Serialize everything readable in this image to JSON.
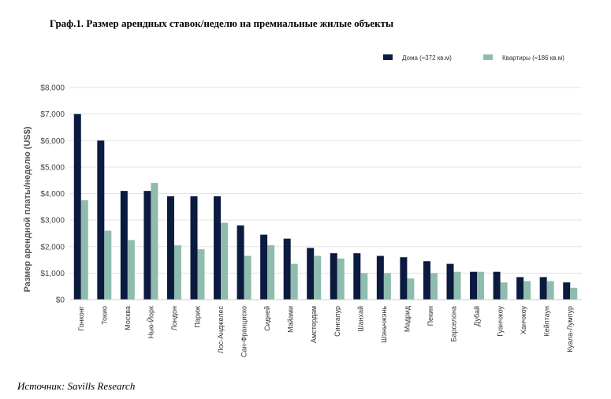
{
  "chart_data": {
    "type": "bar",
    "title": "Граф.1. Размер арендных ставок/неделю на премиальные жилые объекты",
    "ylabel": "Размер арендной платы/неделю (US$)",
    "xlabel": "",
    "ylim": [
      0,
      8000
    ],
    "yticks": [
      "$0",
      "$1,000",
      "$2,000",
      "$3,000",
      "$4,000",
      "$5,000",
      "$6,000",
      "$7,000",
      "$8,000"
    ],
    "grid": true,
    "legend_position": "top-right",
    "categories": [
      "Гонконг",
      "Токио",
      "Москва",
      "Нью-Йорк",
      "Лондон",
      "Париж",
      "Лос-Анджелес",
      "Сан-Франциско",
      "Сидней",
      "Майами",
      "Амстердам",
      "Сингапур",
      "Шанхай",
      "Шэньчжэнь",
      "Мадрид",
      "Пекин",
      "Барселона",
      "Дубай",
      "Гуанчжоу",
      "Ханчжоу",
      "Кейптаун",
      "Куала-Лумпур"
    ],
    "series": [
      {
        "name": "Дома (≈372 кв.м)",
        "color": "#0b1a3f",
        "values": [
          7000,
          6000,
          4100,
          4100,
          3900,
          3900,
          3900,
          2800,
          2450,
          2300,
          1950,
          1750,
          1750,
          1650,
          1600,
          1450,
          1350,
          1050,
          1050,
          850,
          850,
          650
        ]
      },
      {
        "name": "Квартиры (≈186 кв.м)",
        "color": "#8fbcae",
        "values": [
          3750,
          2600,
          2250,
          4400,
          2050,
          1900,
          2900,
          1650,
          2050,
          1350,
          1650,
          1550,
          1000,
          1000,
          800,
          1000,
          1050,
          1050,
          650,
          700,
          700,
          450
        ]
      }
    ]
  },
  "source": "Источник: Savills Research"
}
